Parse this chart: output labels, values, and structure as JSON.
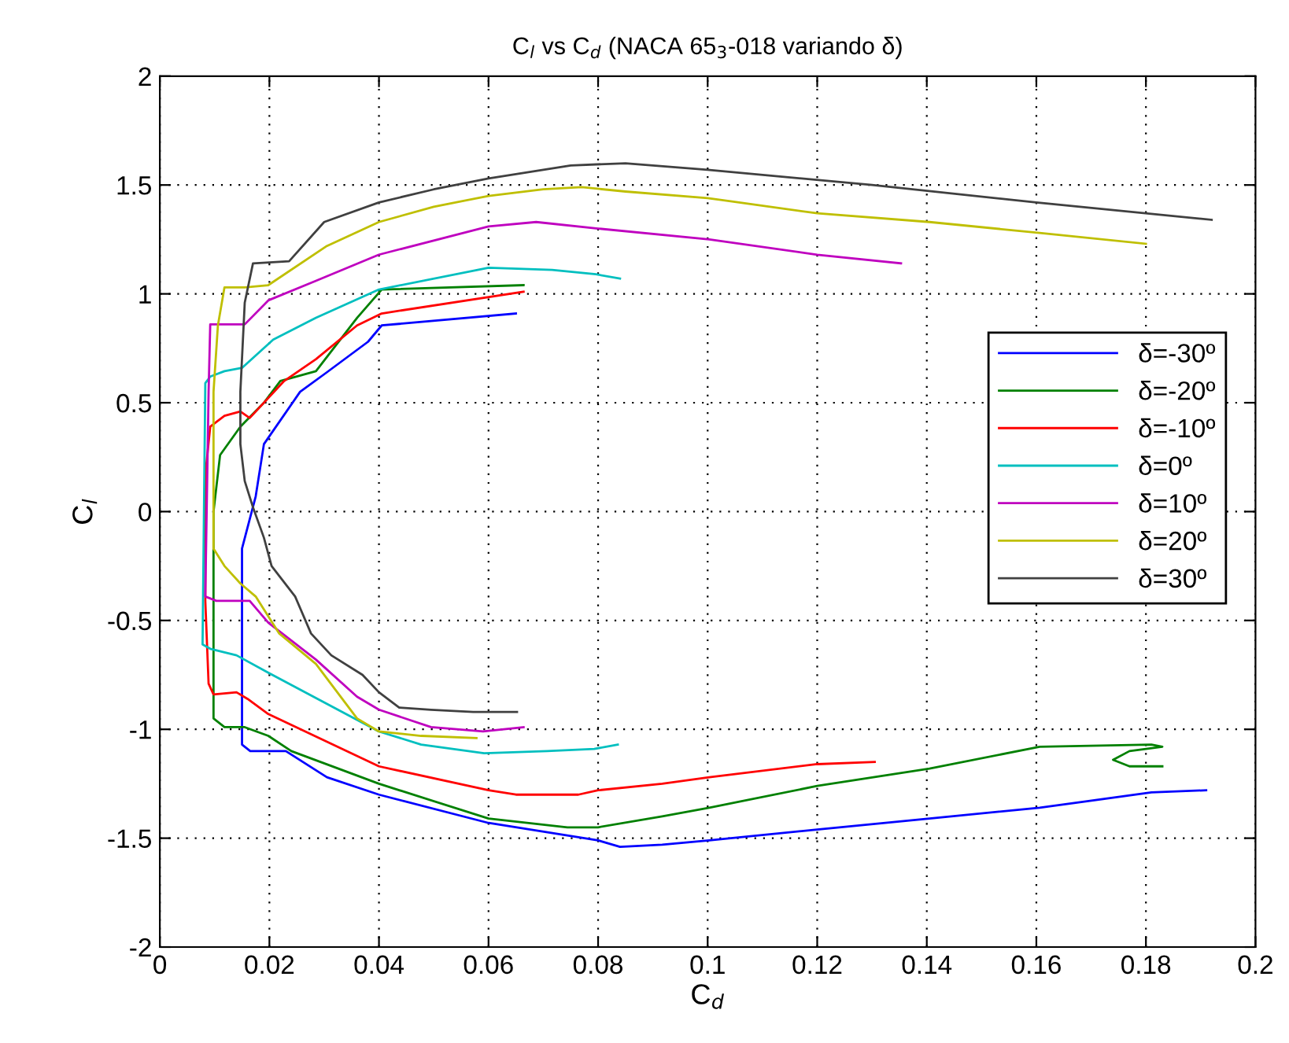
{
  "chart_data": {
    "type": "line",
    "title": "C$_{l}$ vs C$_{d}$ (NACA 65$_{3}$-018 variando δ)",
    "xlabel": "C$_{d}$",
    "ylabel": "C$_{l}$",
    "xlim": [
      0,
      0.2
    ],
    "ylim": [
      -2,
      2
    ],
    "xticks": [
      0,
      0.02,
      0.04,
      0.06,
      0.08,
      0.1,
      0.12,
      0.14,
      0.16,
      0.18,
      0.2
    ],
    "yticks": [
      -2,
      -1.5,
      -1,
      -0.5,
      0,
      0.5,
      1,
      1.5,
      2
    ],
    "grid": true,
    "legend": "right",
    "line_style": "solid",
    "marker": "none",
    "series": [
      {
        "name": "δ=-30º",
        "color": "#0000ff",
        "x": [
          0.065,
          0.0405,
          0.038,
          0.0305,
          0.0256,
          0.019,
          0.0175,
          0.015,
          0.015,
          0.0165,
          0.023,
          0.0305,
          0.04,
          0.06,
          0.08,
          0.084,
          0.0917,
          0.1003,
          0.12,
          0.1405,
          0.1606,
          0.181,
          0.191
        ],
        "values": [
          0.91,
          0.855,
          0.78,
          0.64,
          0.55,
          0.31,
          0.07,
          -0.17,
          -1.07,
          -1.1,
          -1.1,
          -1.22,
          -1.3,
          -1.43,
          -1.51,
          -1.54,
          -1.53,
          -1.51,
          -1.46,
          -1.41,
          -1.36,
          -1.29,
          -1.28
        ]
      },
      {
        "name": "δ=-20º",
        "color": "#008000",
        "x": [
          0.0664,
          0.0405,
          0.036,
          0.0285,
          0.022,
          0.019,
          0.0147,
          0.011,
          0.0098,
          0.0098,
          0.0118,
          0.0155,
          0.0198,
          0.024,
          0.04,
          0.06,
          0.0744,
          0.08,
          0.0917,
          0.1003,
          0.12,
          0.1405,
          0.1606,
          0.181,
          0.183,
          0.177,
          0.174,
          0.177,
          0.183
        ],
        "values": [
          1.04,
          1.02,
          0.89,
          0.645,
          0.6,
          0.5,
          0.39,
          0.26,
          0,
          -0.95,
          -0.99,
          -0.99,
          -1.03,
          -1.1,
          -1.25,
          -1.41,
          -1.45,
          -1.45,
          -1.4,
          -1.36,
          -1.26,
          -1.18,
          -1.08,
          -1.07,
          -1.08,
          -1.1,
          -1.14,
          -1.17,
          -1.17
        ]
      },
      {
        "name": "δ=-10º",
        "color": "#ff0000",
        "x": [
          0.0664,
          0.0405,
          0.036,
          0.0285,
          0.0227,
          0.0164,
          0.0147,
          0.0118,
          0.0092,
          0.0083,
          0.0083,
          0.0089,
          0.0098,
          0.014,
          0.016,
          0.0198,
          0.04,
          0.06,
          0.065,
          0.0764,
          0.08,
          0.0917,
          0.1003,
          0.12,
          0.1305
        ],
        "values": [
          1.01,
          0.91,
          0.855,
          0.7,
          0.6,
          0.43,
          0.46,
          0.44,
          0.39,
          0.17,
          -0.41,
          -0.79,
          -0.84,
          -0.83,
          -0.86,
          -0.93,
          -1.17,
          -1.28,
          -1.3,
          -1.3,
          -1.28,
          -1.25,
          -1.22,
          -1.16,
          -1.15
        ]
      },
      {
        "name": "δ=0º",
        "color": "#00bfbf",
        "x": [
          0.084,
          0.0796,
          0.0716,
          0.06,
          0.04,
          0.0285,
          0.0207,
          0.015,
          0.0118,
          0.0092,
          0.0083,
          0.0078,
          0.0092,
          0.014,
          0.0198,
          0.04,
          0.0477,
          0.0592,
          0.0707,
          0.0793,
          0.0836
        ],
        "values": [
          1.07,
          1.09,
          1.11,
          1.12,
          1.02,
          0.89,
          0.79,
          0.66,
          0.645,
          0.62,
          0.59,
          -0.61,
          -0.63,
          -0.66,
          -0.74,
          -1.01,
          -1.07,
          -1.11,
          -1.1,
          -1.09,
          -1.07
        ]
      },
      {
        "name": "δ=10º",
        "color": "#bf00bf",
        "x": [
          0.1353,
          0.12,
          0.1003,
          0.08,
          0.0687,
          0.06,
          0.04,
          0.0285,
          0.0198,
          0.0155,
          0.0092,
          0.0089,
          0.0083,
          0.0103,
          0.0164,
          0.0198,
          0.0285,
          0.036,
          0.04,
          0.0495,
          0.059,
          0.0664
        ],
        "values": [
          1.14,
          1.18,
          1.25,
          1.3,
          1.33,
          1.31,
          1.18,
          1.06,
          0.97,
          0.86,
          0.86,
          0.55,
          -0.39,
          -0.41,
          -0.41,
          -0.51,
          -0.68,
          -0.85,
          -0.91,
          -0.99,
          -1.01,
          -0.99
        ]
      },
      {
        "name": "δ=20º",
        "color": "#bfbf00",
        "x": [
          0.18,
          0.1606,
          0.1405,
          0.12,
          0.1,
          0.085,
          0.077,
          0.07,
          0.06,
          0.05,
          0.04,
          0.0305,
          0.0198,
          0.0155,
          0.0118,
          0.0106,
          0.0098,
          0.0098,
          0.0118,
          0.0147,
          0.0175,
          0.0218,
          0.0285,
          0.036,
          0.04,
          0.0477,
          0.0578
        ],
        "values": [
          1.23,
          1.28,
          1.33,
          1.37,
          1.44,
          1.47,
          1.49,
          1.48,
          1.45,
          1.4,
          1.33,
          1.22,
          1.04,
          1.03,
          1.03,
          0.855,
          0.55,
          -0.17,
          -0.25,
          -0.33,
          -0.39,
          -0.56,
          -0.7,
          -0.95,
          -1.01,
          -1.03,
          -1.04
        ]
      },
      {
        "name": "δ=30º",
        "color": "#404040",
        "x": [
          0.192,
          0.16,
          0.13,
          0.1,
          0.085,
          0.075,
          0.06,
          0.05,
          0.04,
          0.03,
          0.0236,
          0.017,
          0.0155,
          0.0147,
          0.0147,
          0.0155,
          0.017,
          0.019,
          0.0204,
          0.0247,
          0.0276,
          0.0313,
          0.037,
          0.04,
          0.0437,
          0.0495,
          0.0572,
          0.0652
        ],
        "values": [
          1.34,
          1.42,
          1.5,
          1.57,
          1.6,
          1.59,
          1.53,
          1.48,
          1.42,
          1.33,
          1.15,
          1.14,
          0.96,
          0.55,
          0.31,
          0.14,
          0.02,
          -0.12,
          -0.25,
          -0.39,
          -0.56,
          -0.66,
          -0.75,
          -0.83,
          -0.9,
          -0.91,
          -0.92,
          -0.92
        ]
      }
    ]
  }
}
